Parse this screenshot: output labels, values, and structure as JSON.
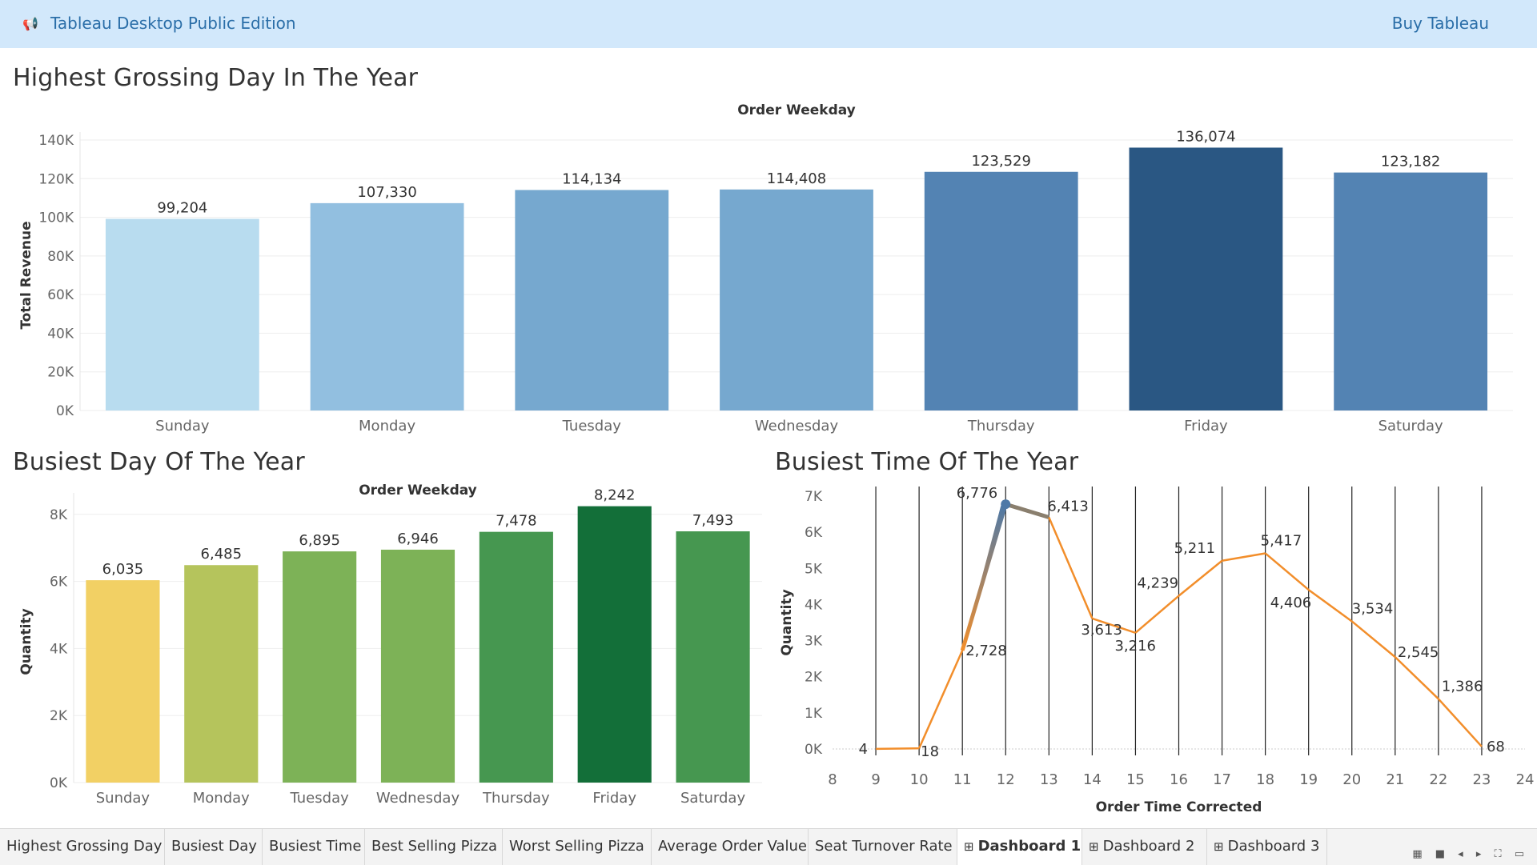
{
  "app": {
    "title": "Tableau Desktop Public Edition",
    "buy_label": "Buy Tableau",
    "logo_icon": "tableau-logo-icon"
  },
  "sheets": {
    "revenue_title": "Highest Grossing Day In The Year",
    "busy_day_title": "Busiest Day Of The Year",
    "busy_time_title": "Busiest Time Of The Year"
  },
  "chart_data": [
    {
      "type": "bar",
      "title": "Order Weekday",
      "ylabel": "Total Revenue",
      "xlabel": "",
      "categories": [
        "Sunday",
        "Monday",
        "Tuesday",
        "Wednesday",
        "Thursday",
        "Friday",
        "Saturday"
      ],
      "values": [
        99204,
        107330,
        114134,
        114408,
        123529,
        136074,
        123182
      ],
      "value_labels": [
        "99,204",
        "107,330",
        "114,134",
        "114,408",
        "123,529",
        "136,074",
        "123,182"
      ],
      "colors": [
        "#b8dcef",
        "#92bfe0",
        "#76a8cf",
        "#76a8cf",
        "#5383b3",
        "#2a5783",
        "#5383b3"
      ],
      "ylim": [
        0,
        140000
      ],
      "yticks": [
        0,
        20000,
        40000,
        60000,
        80000,
        100000,
        120000,
        140000
      ],
      "ytick_labels": [
        "0K",
        "20K",
        "40K",
        "60K",
        "80K",
        "100K",
        "120K",
        "140K"
      ],
      "grid": true
    },
    {
      "type": "bar",
      "title": "Order Weekday",
      "ylabel": "Quantity",
      "xlabel": "",
      "categories": [
        "Sunday",
        "Monday",
        "Tuesday",
        "Wednesday",
        "Thursday",
        "Friday",
        "Saturday"
      ],
      "values": [
        6035,
        6485,
        6895,
        6946,
        7478,
        8242,
        7493
      ],
      "value_labels": [
        "6,035",
        "6,485",
        "6,895",
        "6,946",
        "7,478",
        "8,242",
        "7,493"
      ],
      "colors": [
        "#f2d064",
        "#b5c45c",
        "#7db257",
        "#7db257",
        "#469750",
        "#136f39",
        "#469750"
      ],
      "ylim": [
        0,
        8400
      ],
      "yticks": [
        0,
        2000,
        4000,
        6000,
        8000
      ],
      "ytick_labels": [
        "0K",
        "2K",
        "4K",
        "6K",
        "8K"
      ],
      "grid": true
    },
    {
      "type": "line",
      "title": "",
      "ylabel": "Quantity",
      "xlabel": "Order Time Corrected",
      "x": [
        9,
        10,
        11,
        12,
        13,
        14,
        15,
        16,
        17,
        18,
        19,
        20,
        21,
        22,
        23
      ],
      "values": [
        4,
        18,
        2728,
        6776,
        6413,
        3613,
        3216,
        4239,
        5211,
        5417,
        4406,
        3534,
        2545,
        1386,
        68
      ],
      "value_labels": [
        "4",
        "18",
        "2,728",
        "6,776",
        "6,413",
        "3,613",
        "3,216",
        "4,239",
        "5,211",
        "5,417",
        "4,406",
        "3,534",
        "2,545",
        "1,386",
        "68"
      ],
      "xticks": [
        8,
        9,
        10,
        11,
        12,
        13,
        14,
        15,
        16,
        17,
        18,
        19,
        20,
        21,
        22,
        23,
        24
      ],
      "xtick_labels": [
        "8",
        "9",
        "10",
        "11",
        "12",
        "13",
        "14",
        "15",
        "16",
        "17",
        "18",
        "19",
        "20",
        "21",
        "22",
        "23",
        "24"
      ],
      "xlim": [
        8,
        24
      ],
      "ylim": [
        0,
        7000
      ],
      "yticks": [
        0,
        1000,
        2000,
        3000,
        4000,
        5000,
        6000,
        7000
      ],
      "ytick_labels": [
        "0K",
        "1K",
        "2K",
        "3K",
        "4K",
        "5K",
        "6K",
        "7K"
      ],
      "line_color": "#f28e2b",
      "highlight_color": "#4e79a7",
      "grid": true
    }
  ],
  "tabs": [
    {
      "label": "Highest Grossing Day",
      "icon": "",
      "active": false
    },
    {
      "label": "Busiest Day",
      "icon": "",
      "active": false
    },
    {
      "label": "Busiest Time",
      "icon": "",
      "active": false
    },
    {
      "label": "Best Selling Pizza",
      "icon": "",
      "active": false
    },
    {
      "label": "Worst Selling Pizza",
      "icon": "",
      "active": false
    },
    {
      "label": "Average Order Value",
      "icon": "",
      "active": false
    },
    {
      "label": "Seat Turnover Rate",
      "icon": "",
      "active": false
    },
    {
      "label": "Dashboard 1",
      "icon": "dashboard-icon",
      "active": true
    },
    {
      "label": "Dashboard 2",
      "icon": "dashboard-icon",
      "active": false
    },
    {
      "label": "Dashboard 3",
      "icon": "dashboard-icon",
      "active": false
    }
  ],
  "nav_icons": [
    "grid-view-icon",
    "filmstrip-icon",
    "prev-icon",
    "next-icon",
    "fit-icon",
    "presentation-icon"
  ]
}
